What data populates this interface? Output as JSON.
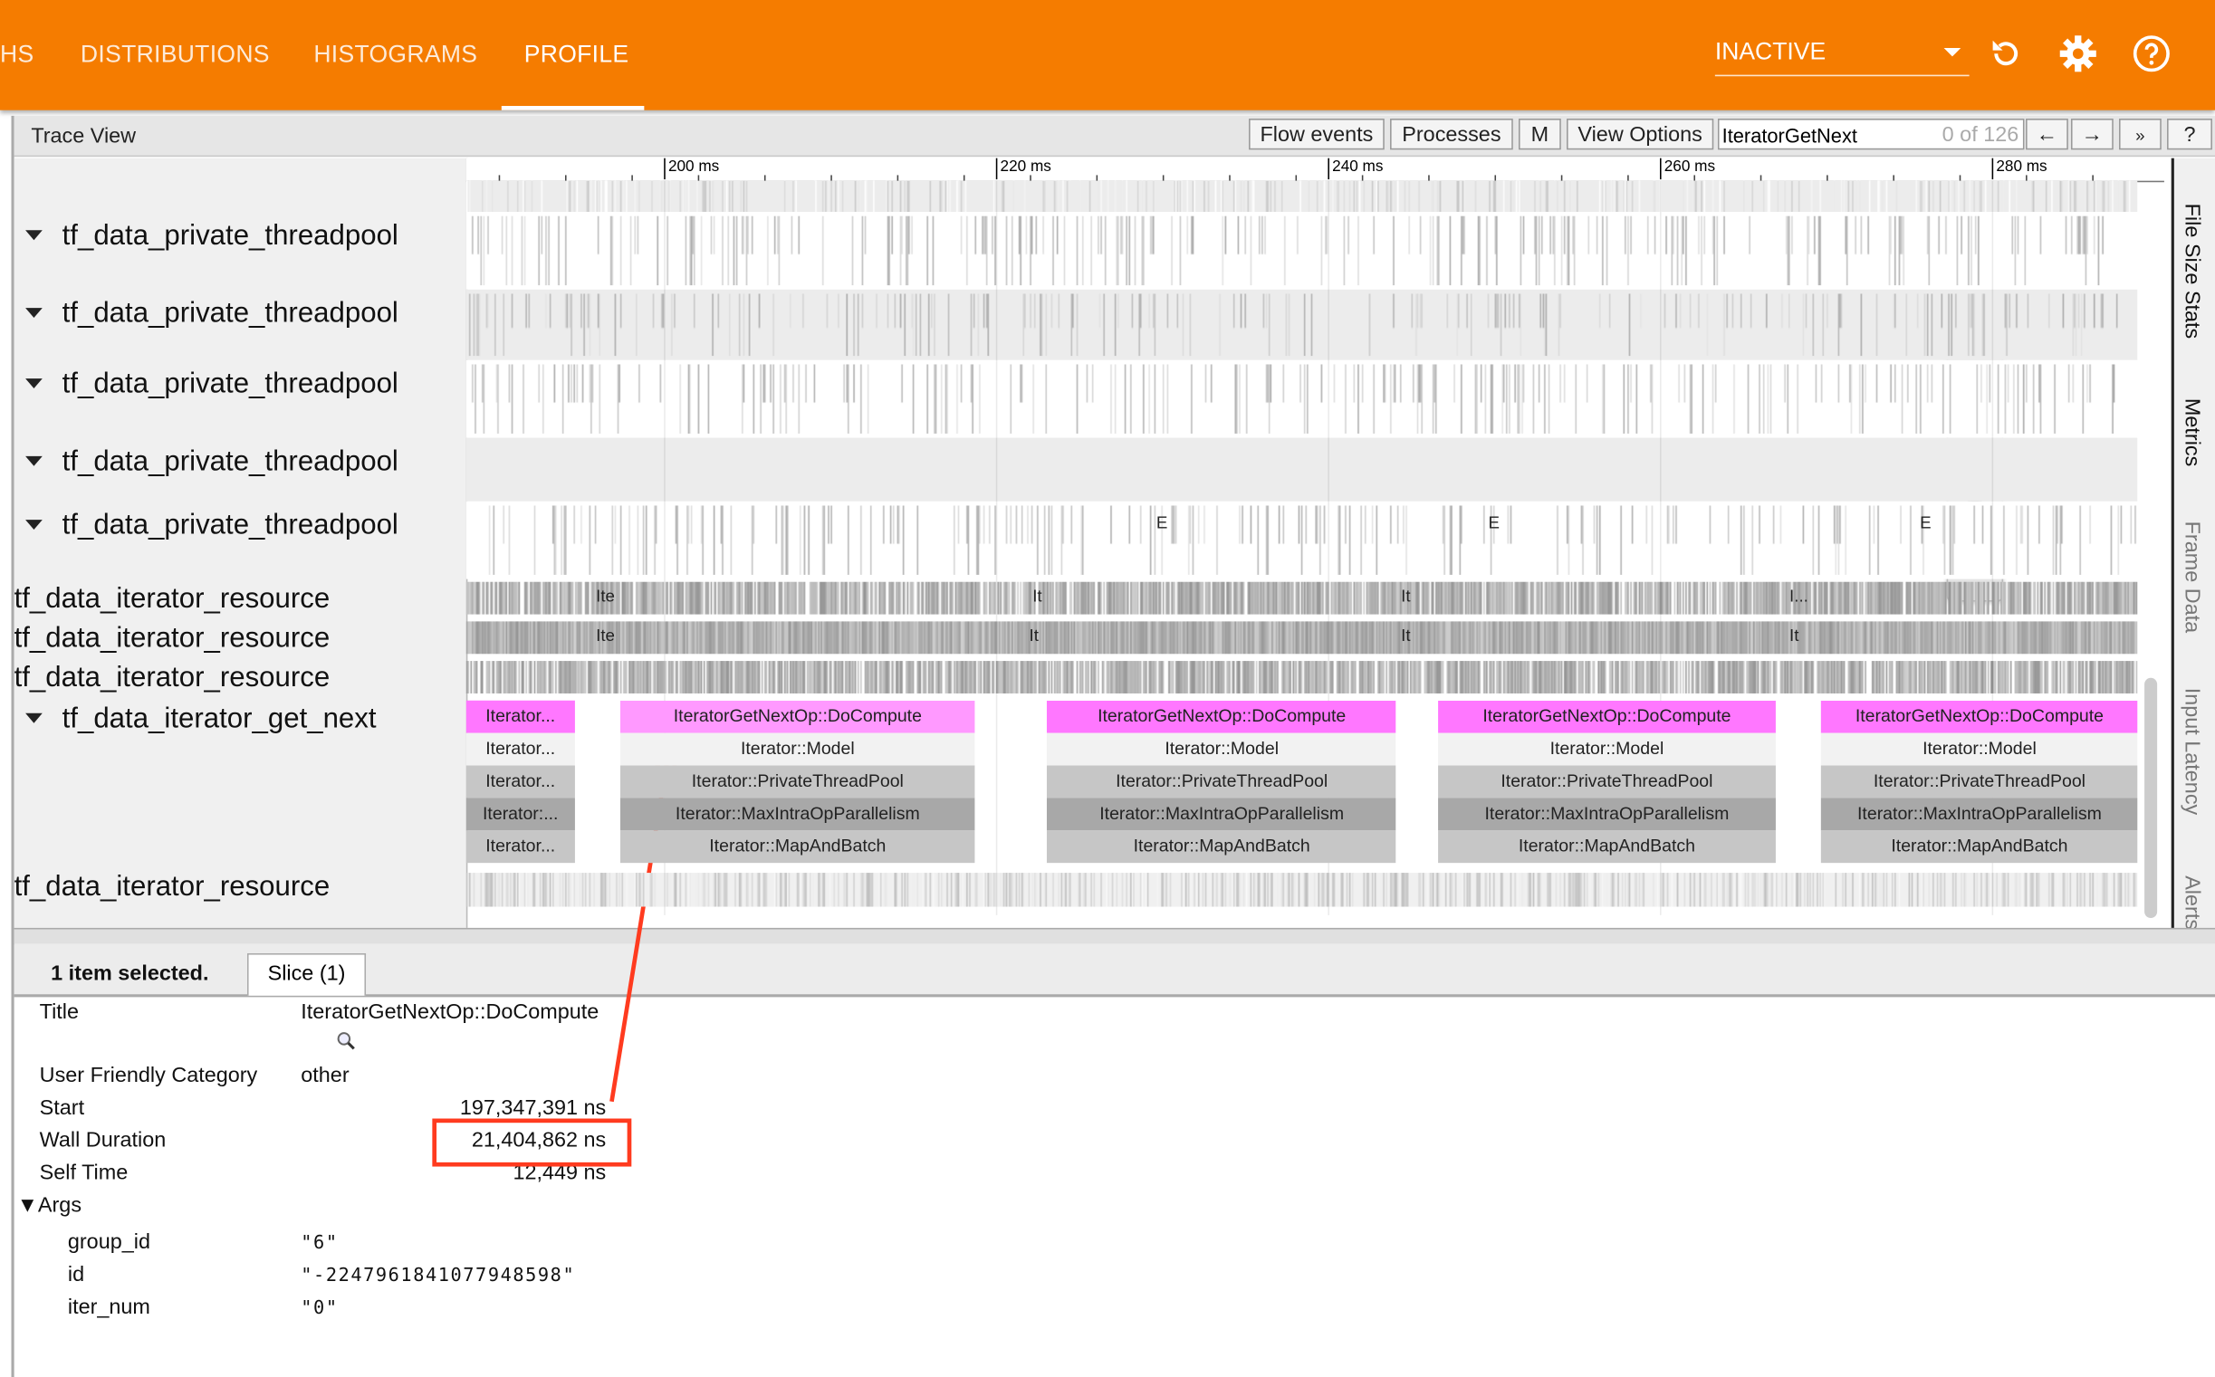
{
  "header": {
    "tabs": [
      "HS",
      "DISTRIBUTIONS",
      "HISTOGRAMS",
      "PROFILE"
    ],
    "active_tab": "PROFILE",
    "run_select": "INACTIVE",
    "icons": [
      "refresh-icon",
      "settings-gear-icon",
      "help-icon"
    ],
    "color": "#f57c00"
  },
  "toolbar": {
    "title": "Trace View",
    "flow_events": "Flow events",
    "processes": "Processes",
    "m": "M",
    "view_options": "View Options",
    "search_value": "IteratorGetNext",
    "match_count": "0 of 126",
    "prev": "←",
    "next": "→",
    "more": "»",
    "help": "?"
  },
  "ruler": {
    "ticks": [
      {
        "ms": 200,
        "label": "200 ms"
      },
      {
        "ms": 220,
        "label": "220 ms"
      },
      {
        "ms": 240,
        "label": "240 ms"
      },
      {
        "ms": 260,
        "label": "260 ms"
      },
      {
        "ms": 280,
        "label": "280 ms"
      }
    ]
  },
  "tracks": {
    "threads": [
      "tf_data_private_threadpool",
      "tf_data_private_threadpool",
      "tf_data_private_threadpool",
      "tf_data_private_threadpool",
      "tf_data_private_threadpool"
    ],
    "resources": [
      "tf_data_iterator_resource",
      "tf_data_iterator_resource",
      "tf_data_iterator_resource"
    ],
    "get_next": "tf_data_iterator_get_next",
    "last_resource": "tf_data_iterator_resource",
    "e_markers": [
      {
        "ms": 230.0,
        "label": "E"
      },
      {
        "ms": 250.0,
        "label": "E"
      },
      {
        "ms": 276.0,
        "label": "E"
      }
    ],
    "resource_markers": [
      [
        {
          "ms": 195.9,
          "label": "Ite"
        },
        {
          "ms": 222.2,
          "label": "It"
        },
        {
          "ms": 244.4,
          "label": "It"
        },
        {
          "ms": 267.8,
          "label": "I..."
        }
      ],
      [
        {
          "ms": 195.9,
          "label": "Ite"
        },
        {
          "ms": 222.0,
          "label": "It"
        },
        {
          "ms": 244.4,
          "label": "It"
        },
        {
          "ms": 267.8,
          "label": "It"
        }
      ]
    ]
  },
  "slice_groups": [
    {
      "start_ms": 188.1,
      "end_ms": 194.6,
      "labels": [
        "Iterator...",
        "Iterator...",
        "Iterator...",
        "Iterator:...",
        "Iterator..."
      ],
      "selected": false
    },
    {
      "start_ms": 197.35,
      "end_ms": 218.75,
      "labels": [
        "IteratorGetNextOp::DoCompute",
        "Iterator::Model",
        "Iterator::PrivateThreadPool",
        "Iterator::MaxIntraOpParallelism",
        "Iterator::MapAndBatch"
      ],
      "selected": true
    },
    {
      "start_ms": 223.1,
      "end_ms": 244.1,
      "labels": [
        "IteratorGetNextOp::DoCompute",
        "Iterator::Model",
        "Iterator::PrivateThreadPool",
        "Iterator::MaxIntraOpParallelism",
        "Iterator::MapAndBatch"
      ],
      "selected": false
    },
    {
      "start_ms": 246.6,
      "end_ms": 267.0,
      "labels": [
        "IteratorGetNextOp::DoCompute",
        "Iterator::Model",
        "Iterator::PrivateThreadPool",
        "Iterator::MaxIntraOpParallelism",
        "Iterator::MapAndBatch"
      ],
      "selected": false
    },
    {
      "start_ms": 269.7,
      "end_ms": 288.8,
      "labels": [
        "IteratorGetNextOp::DoCompute",
        "Iterator::Model",
        "Iterator::PrivateThreadPool",
        "Iterator::MaxIntraOpParallelism",
        "Iterator::MapAndBatch"
      ],
      "selected": false
    }
  ],
  "slice_colors": {
    "top": "#ff77ff",
    "top_selected": "#ff99ff",
    "level1": "#f2f2f2",
    "level2": "#c6c6c6",
    "level3": "#a8a8a8",
    "level4": "#c6c6c6"
  },
  "side_tabs": [
    {
      "label": "File Size Stats",
      "dim": false
    },
    {
      "label": "Metrics",
      "dim": false
    },
    {
      "label": "Frame Data",
      "dim": true
    },
    {
      "label": "Input Latency",
      "dim": true
    },
    {
      "label": "Alerts",
      "dim": true
    }
  ],
  "details": {
    "selected_text": "1 item selected.",
    "tab": "Slice (1)",
    "title_label": "Title",
    "title_value": "IteratorGetNextOp::DoCompute",
    "category_label": "User Friendly Category",
    "category_value": "other",
    "start_label": "Start",
    "start_value": "197,347,391 ns",
    "wall_label": "Wall Duration",
    "wall_value": "21,404,862 ns",
    "self_label": "Self Time",
    "self_value": "12,449 ns",
    "args_label": "Args",
    "args": [
      {
        "key": "group_id",
        "value": "\"6\""
      },
      {
        "key": "id",
        "value": "\"-2247961841077948598\""
      },
      {
        "key": "iter_num",
        "value": "\"0\""
      }
    ]
  },
  "annotation_color": "#ff3b1f"
}
